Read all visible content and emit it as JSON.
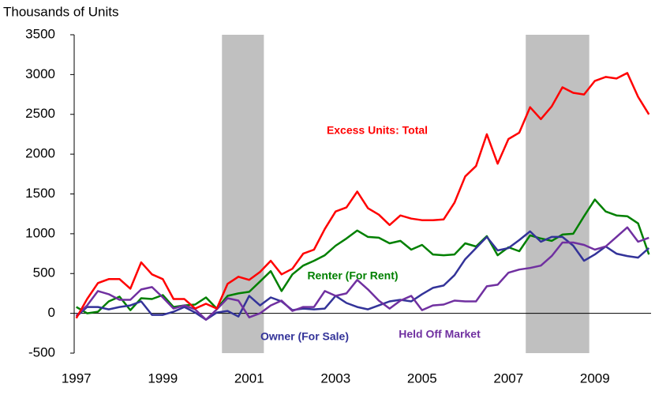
{
  "chart_data": {
    "type": "line",
    "y_axis_label": "Thousands of Units",
    "xlim": [
      1996.95,
      2010.3
    ],
    "xticks": [
      1997,
      1999,
      2001,
      2003,
      2005,
      2007,
      2009
    ],
    "ylim": [
      -500,
      3500
    ],
    "yticks": [
      -500,
      0,
      500,
      1000,
      1500,
      2000,
      2500,
      3000,
      3500
    ],
    "shaded_ranges": [
      [
        2000.37,
        2001.34
      ],
      [
        2007.4,
        2008.87
      ]
    ],
    "shade_color": "#c0c0c0",
    "x": [
      1997,
      1997.25,
      1997.5,
      1997.75,
      1998,
      1998.25,
      1998.5,
      1998.75,
      1999,
      1999.25,
      1999.5,
      1999.75,
      2000,
      2000.25,
      2000.5,
      2000.75,
      2001,
      2001.25,
      2001.5,
      2001.75,
      2002,
      2002.25,
      2002.5,
      2002.75,
      2003,
      2003.25,
      2003.5,
      2003.75,
      2004,
      2004.25,
      2004.5,
      2004.75,
      2005,
      2005.25,
      2005.5,
      2005.75,
      2006,
      2006.25,
      2006.5,
      2006.75,
      2007,
      2007.25,
      2007.5,
      2007.75,
      2008,
      2008.25,
      2008.5,
      2008.75,
      2009,
      2009.25,
      2009.5,
      2009.75,
      2010,
      2010.25
    ],
    "series": [
      {
        "name": "Excess Units: Total",
        "color": "#ff0000",
        "values": [
          -60,
          180,
          380,
          430,
          430,
          310,
          640,
          490,
          430,
          180,
          180,
          60,
          120,
          60,
          370,
          460,
          420,
          520,
          660,
          490,
          560,
          750,
          800,
          1060,
          1280,
          1330,
          1530,
          1320,
          1240,
          1110,
          1230,
          1190,
          1170,
          1170,
          1180,
          1390,
          1720,
          1850,
          2250,
          1880,
          2190,
          2270,
          2590,
          2440,
          2600,
          2840,
          2770,
          2750,
          2920,
          2970,
          2950,
          3020,
          2720,
          2500
        ]
      },
      {
        "name": "Renter (For Rent)",
        "color": "#008000",
        "values": [
          80,
          0,
          20,
          150,
          210,
          40,
          190,
          180,
          230,
          80,
          100,
          110,
          200,
          60,
          220,
          250,
          270,
          400,
          530,
          280,
          490,
          600,
          660,
          730,
          850,
          940,
          1040,
          960,
          950,
          880,
          910,
          800,
          860,
          740,
          730,
          740,
          880,
          840,
          970,
          730,
          830,
          780,
          980,
          940,
          910,
          990,
          1000,
          1220,
          1430,
          1280,
          1230,
          1220,
          1130,
          740
        ]
      },
      {
        "name": "Owner (For Sale)",
        "color": "#333399",
        "values": [
          -40,
          80,
          80,
          50,
          80,
          100,
          150,
          -20,
          -20,
          20,
          80,
          10,
          -80,
          10,
          30,
          -40,
          220,
          100,
          200,
          150,
          40,
          60,
          50,
          60,
          220,
          130,
          80,
          50,
          100,
          150,
          170,
          150,
          240,
          320,
          350,
          480,
          680,
          820,
          960,
          790,
          820,
          920,
          1030,
          900,
          960,
          960,
          850,
          660,
          740,
          840,
          750,
          720,
          700,
          820
        ]
      },
      {
        "name": "Held Off Market",
        "color": "#7030a0",
        "values": [
          -30,
          100,
          280,
          240,
          170,
          170,
          300,
          330,
          200,
          60,
          100,
          50,
          -80,
          50,
          190,
          160,
          -50,
          0,
          100,
          160,
          30,
          80,
          80,
          280,
          220,
          250,
          420,
          300,
          160,
          60,
          160,
          220,
          40,
          100,
          110,
          160,
          150,
          150,
          340,
          360,
          510,
          550,
          570,
          600,
          720,
          890,
          890,
          860,
          800,
          840,
          960,
          1080,
          900,
          950
        ]
      }
    ]
  }
}
